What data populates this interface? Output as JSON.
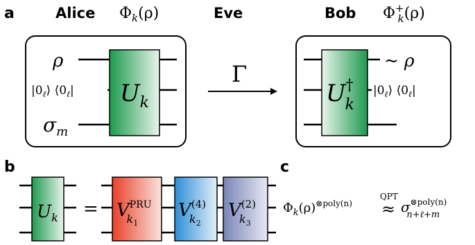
{
  "panels": {
    "a": {
      "label": "a",
      "alice": {
        "name": "Alice",
        "channel": "Φ",
        "channel_sub": "k",
        "channel_arg": "(ρ)"
      },
      "eve": {
        "name": "Eve"
      },
      "bob": {
        "name": "Bob",
        "channel": "Φ",
        "channel_sup": "+",
        "channel_sub": "k",
        "channel_arg": "(ρ)"
      },
      "arrow_label": "Γ",
      "alice_inputs": {
        "rho": "ρ",
        "ancilla_ket": "|0",
        "ancilla_sub": "ℓ",
        "ancilla_mid": "⟩ ⟨0",
        "ancilla_sub2": "ℓ",
        "ancilla_bra": "|",
        "sigma": "σ",
        "sigma_sub": "m"
      },
      "alice_gate": {
        "main": "U",
        "sub": "k"
      },
      "bob_gate": {
        "main": "U",
        "sup": "†",
        "sub": "k"
      },
      "bob_outputs": {
        "rho": "~ ρ",
        "ancilla_ket": "|0",
        "ancilla_sub": "ℓ",
        "ancilla_mid": "⟩ ⟨0",
        "ancilla_sub2": "ℓ",
        "ancilla_bra": "|"
      }
    },
    "b": {
      "label": "b",
      "equals": "=",
      "lhs_gate": {
        "main": "U",
        "sub": "k"
      },
      "gates": [
        {
          "main": "V",
          "sup": "PRU",
          "sub": "k",
          "subsub": "1"
        },
        {
          "main": "V",
          "sup": "(4)",
          "sub": "k",
          "subsub": "2"
        },
        {
          "main": "V",
          "sup": "(2)",
          "sub": "k",
          "subsub": "3"
        }
      ]
    },
    "c": {
      "label": "c",
      "lhs_main": "Φ",
      "lhs_sub": "k",
      "lhs_arg": "(ρ)",
      "lhs_sup": "⊗poly(n)",
      "approx_label": "QPT",
      "approx": "≈",
      "rhs_main": "σ",
      "rhs_sup": "⊗poly(n)",
      "rhs_sub": "n+ℓ+m"
    }
  },
  "colors": {
    "green": "#1e9a4e",
    "red": "#e8412b",
    "blue": "#2e8ed6",
    "slate": "#7a86b8",
    "stroke": "#000000"
  }
}
